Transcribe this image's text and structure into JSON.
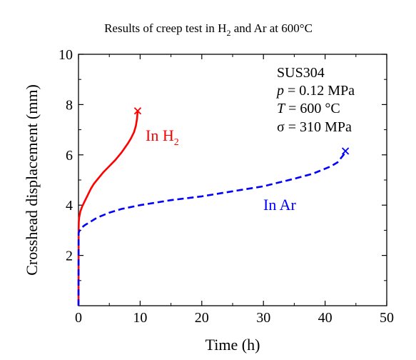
{
  "chart_data": {
    "type": "line",
    "title": "Results of creep test in H",
    "title_sub": "2",
    "title_rest": " and Ar at 600°C",
    "xlabel": "Time (h)",
    "ylabel": "Crosshead displacement (mm)",
    "xlim": [
      0,
      50
    ],
    "ylim": [
      0,
      10
    ],
    "xticks": [
      0,
      10,
      20,
      30,
      40,
      50
    ],
    "yticks": [
      2,
      4,
      6,
      8,
      10
    ],
    "grid": false,
    "annotation": {
      "material": "SUS304",
      "p_var": "p",
      "p_val": " = 0.12 MPa",
      "t_var": "T",
      "t_val": " = 600 °C",
      "sigma": "σ = 310 MPa"
    },
    "series": [
      {
        "name": "In H",
        "name_sub": "2",
        "color": "#ff0000",
        "dash": "solid",
        "end_marker": "x",
        "x": [
          0,
          0.02,
          0.05,
          0.1,
          0.3,
          0.6,
          1,
          1.5,
          2,
          2.5,
          3,
          4,
          5,
          6,
          7,
          8,
          8.5,
          9,
          9.3,
          9.5,
          9.6
        ],
        "y": [
          0,
          3.0,
          3.3,
          3.5,
          3.75,
          3.95,
          4.15,
          4.4,
          4.65,
          4.85,
          5.0,
          5.3,
          5.55,
          5.8,
          6.1,
          6.45,
          6.65,
          6.9,
          7.15,
          7.45,
          7.75
        ]
      },
      {
        "name": "In Ar",
        "name_sub": "",
        "color": "#0000ff",
        "dash": "dashed",
        "end_marker": "x",
        "x": [
          0,
          0.02,
          0.2,
          0.5,
          1,
          2,
          3,
          5,
          7,
          10,
          15,
          20,
          25,
          30,
          35,
          38,
          40,
          41,
          42,
          42.5,
          43,
          43.3
        ],
        "y": [
          0,
          2.9,
          3.0,
          3.1,
          3.2,
          3.35,
          3.5,
          3.7,
          3.85,
          4.0,
          4.2,
          4.35,
          4.55,
          4.75,
          5.05,
          5.25,
          5.45,
          5.55,
          5.7,
          5.85,
          6.0,
          6.15
        ]
      }
    ]
  }
}
